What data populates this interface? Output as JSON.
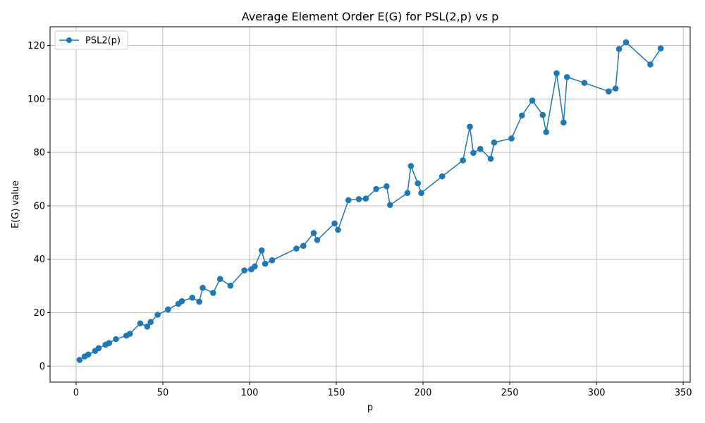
{
  "chart_data": {
    "type": "line",
    "title": "Average Element Order E(G) for PSL(2,p) vs p",
    "xlabel": "p",
    "ylabel": "E(G) value",
    "xlim": [
      -15,
      354
    ],
    "ylim": [
      -6,
      127
    ],
    "xticks": [
      0,
      50,
      100,
      150,
      200,
      250,
      300,
      350
    ],
    "yticks": [
      0,
      20,
      40,
      60,
      80,
      100,
      120
    ],
    "grid": true,
    "legend_position": "top-left",
    "colors": {
      "series": "#1f77b4",
      "grid": "#b0b0b0"
    },
    "series": [
      {
        "name": "PSL2(p)",
        "marker": "circle",
        "x": [
          2,
          5,
          7,
          11,
          13,
          17,
          19,
          23,
          29,
          31,
          37,
          41,
          43,
          47,
          53,
          59,
          61,
          67,
          71,
          73,
          79,
          83,
          89,
          97,
          101,
          103,
          107,
          109,
          113,
          127,
          131,
          137,
          139,
          149,
          151,
          157,
          163,
          167,
          173,
          179,
          181,
          191,
          193,
          197,
          199,
          211,
          223,
          227,
          229,
          233,
          239,
          241,
          251,
          257,
          263,
          269,
          271,
          277,
          281,
          283,
          293,
          307,
          311,
          313,
          317,
          331,
          337
        ],
        "y": [
          2.3,
          3.6,
          4.3,
          5.7,
          6.7,
          8.0,
          8.6,
          10.1,
          11.4,
          12.1,
          16.0,
          14.8,
          16.5,
          19.2,
          21.2,
          23.3,
          24.3,
          25.6,
          24.1,
          29.3,
          27.4,
          32.6,
          30.1,
          35.8,
          36.2,
          37.3,
          43.3,
          38.3,
          39.6,
          44.0,
          45.0,
          49.8,
          47.2,
          53.4,
          51.0,
          62.1,
          62.5,
          62.7,
          66.3,
          67.3,
          60.3,
          64.8,
          74.9,
          68.4,
          64.8,
          71.0,
          77.0,
          89.6,
          79.8,
          81.3,
          77.6,
          83.7,
          85.2,
          93.8,
          99.4,
          94.0,
          87.6,
          109.6,
          91.2,
          108.2,
          106.0,
          102.8,
          103.9,
          118.7,
          121.2,
          112.9,
          118.9
        ]
      }
    ]
  }
}
